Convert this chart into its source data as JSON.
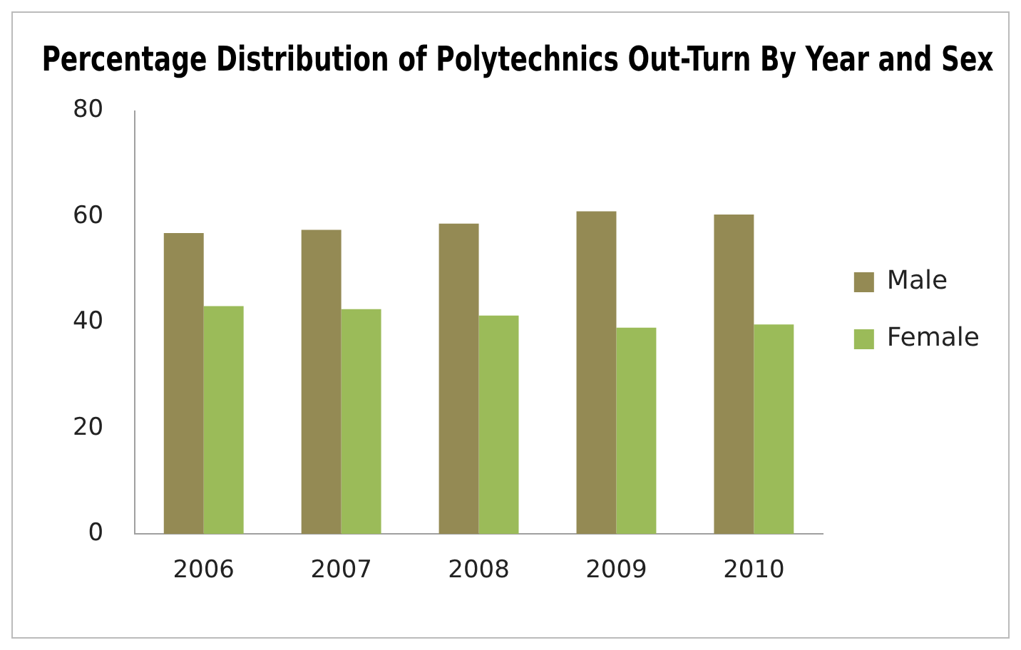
{
  "chart_data": {
    "type": "bar",
    "title": "Percentage Distribution of Polytechnics Out-Turn By Year and Sex",
    "categories": [
      "2006",
      "2007",
      "2008",
      "2009",
      "2010"
    ],
    "series": [
      {
        "name": "Male",
        "color": "#948a54",
        "values": [
          56.9,
          57.5,
          58.7,
          61.0,
          60.4
        ]
      },
      {
        "name": "Female",
        "color": "#9bbb59",
        "values": [
          43.1,
          42.5,
          41.3,
          39.0,
          39.6
        ]
      }
    ],
    "ylim": [
      0,
      80
    ],
    "yticks": [
      0,
      20,
      40,
      60,
      80
    ],
    "grid": false,
    "legend": "right"
  }
}
